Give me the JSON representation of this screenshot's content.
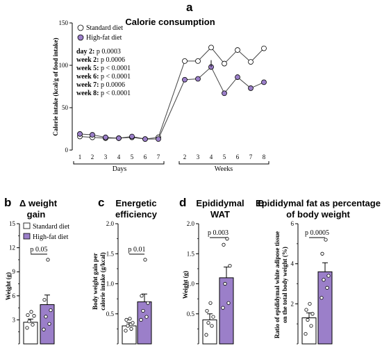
{
  "colors": {
    "standard": "#ffffff",
    "high_fat": "#9b7fc9",
    "stroke": "#000000"
  },
  "chart_data": [
    {
      "panel": "a",
      "type": "line",
      "title": "Calorie consumption",
      "ylabel": "Calorie intake (kcal/g of food intake)",
      "ylim": [
        0,
        150
      ],
      "yticks": [
        "0",
        "50",
        "100",
        "150"
      ],
      "categories": [
        "1",
        "2",
        "3",
        "4",
        "5",
        "6",
        "7",
        "2",
        "3",
        "4",
        "5",
        "6",
        "7",
        "8"
      ],
      "group_labels": [
        "Days",
        "Weeks"
      ],
      "series": [
        {
          "name": "Standard diet",
          "values": [
            16,
            15,
            14,
            14,
            15,
            13,
            15,
            105,
            105,
            121,
            102,
            118,
            104,
            120
          ]
        },
        {
          "name": "High-fat diet",
          "values": [
            19,
            18,
            15,
            14,
            16,
            13,
            13,
            83,
            84,
            98,
            67,
            86,
            73,
            80
          ]
        }
      ],
      "stats": [
        {
          "label": "day 2:",
          "value": "p 0.0003"
        },
        {
          "label": "week 2:",
          "value": "p 0.0006"
        },
        {
          "label": "week 5:",
          "value": "p < 0.0001"
        },
        {
          "label": "week 6:",
          "value": "p < 0.0001"
        },
        {
          "label": "week 7:",
          "value": "p 0.0006"
        },
        {
          "label": "week 8:",
          "value": "p < 0.0001"
        }
      ]
    },
    {
      "panel": "b",
      "type": "bar",
      "title": [
        "Δ weight",
        "gain"
      ],
      "ylabel": [
        "Weight (g)"
      ],
      "ylim": [
        0,
        15
      ],
      "yticks": [
        "3",
        "6",
        "9",
        "12",
        "15"
      ],
      "pvalue": "p 0.05",
      "legend": [
        "Standard diet",
        "High-fat diet"
      ],
      "bars": [
        {
          "name": "Standard diet",
          "mean": 2.7,
          "sem": 0.4,
          "points": [
            2.0,
            2.4,
            2.8,
            3.5,
            3.6,
            4.0
          ]
        },
        {
          "name": "High-fat diet",
          "mean": 4.9,
          "sem": 1.2,
          "points": [
            1.8,
            2.5,
            3.4,
            4.2,
            5.5,
            10.5
          ]
        }
      ]
    },
    {
      "panel": "c",
      "type": "bar",
      "title": [
        "Energetic",
        "efficiency"
      ],
      "ylabel": [
        "Body weight gain per",
        "calorie intake (g/kcal)"
      ],
      "ylim": [
        0,
        2.0
      ],
      "yticks": [
        "0.5",
        "1.0",
        "1.5",
        "2.0"
      ],
      "pvalue": "p 0.01",
      "bars": [
        {
          "name": "Standard diet",
          "mean": 0.3,
          "sem": 0.05,
          "points": [
            0.22,
            0.25,
            0.3,
            0.35,
            0.4,
            0.42
          ]
        },
        {
          "name": "High-fat diet",
          "mean": 0.7,
          "sem": 0.13,
          "points": [
            0.4,
            0.45,
            0.55,
            0.68,
            0.8,
            1.4
          ]
        }
      ]
    },
    {
      "panel": "d",
      "type": "bar",
      "title": [
        "Epididymal",
        "WAT"
      ],
      "ylabel": [
        "Weight (g)"
      ],
      "ylim": [
        0,
        2.0
      ],
      "yticks": [
        "0.5",
        "1.0",
        "1.5",
        "2.0"
      ],
      "pvalue": "p 0.003",
      "bars": [
        {
          "name": "Standard diet",
          "mean": 0.4,
          "sem": 0.1,
          "points": [
            0.15,
            0.3,
            0.35,
            0.45,
            0.55,
            0.68
          ]
        },
        {
          "name": "High-fat diet",
          "mean": 1.1,
          "sem": 0.18,
          "points": [
            0.6,
            0.68,
            1.0,
            1.3,
            1.65,
            1.75
          ]
        }
      ]
    },
    {
      "panel": "e",
      "type": "bar",
      "title": [
        "Epididymal fat as percentage",
        "of body weight"
      ],
      "ylabel": [
        "Ratio of epididymal white adipose tissue",
        "on the total body weight (%)"
      ],
      "ylim": [
        0,
        6
      ],
      "yticks": [
        "2",
        "4",
        "6"
      ],
      "pvalue": "p 0.0005",
      "bars": [
        {
          "name": "Standard diet",
          "mean": 1.3,
          "sem": 0.25,
          "points": [
            0.5,
            0.9,
            1.2,
            1.5,
            1.7,
            2.0
          ]
        },
        {
          "name": "High-fat diet",
          "mean": 3.6,
          "sem": 0.45,
          "points": [
            2.3,
            2.8,
            3.2,
            3.4,
            4.5,
            5.2
          ]
        }
      ]
    }
  ]
}
